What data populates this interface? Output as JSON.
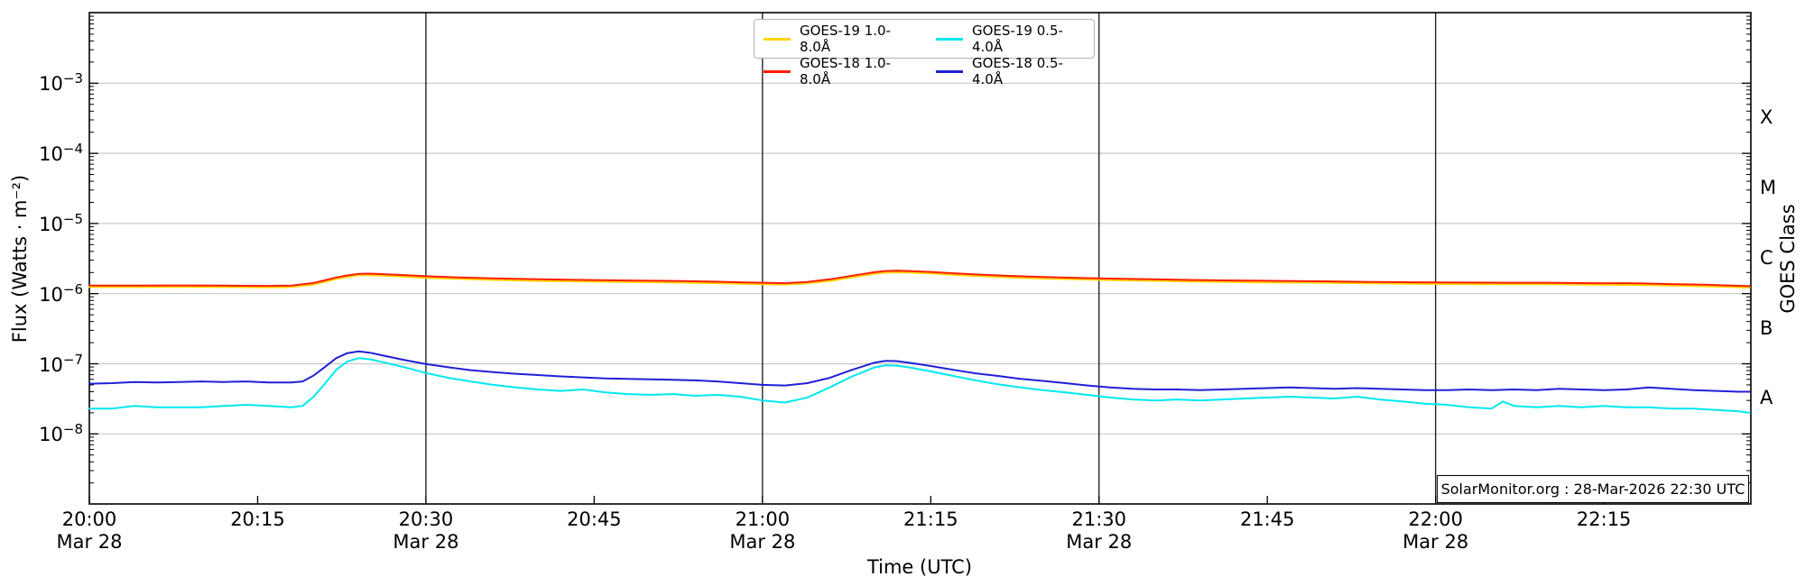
{
  "watermark": {
    "text": "SolarMonitor.org : 28-Mar-2026 22:30 UTC"
  },
  "chart_data": {
    "type": "line",
    "title": "",
    "xlabel": "Time (UTC)",
    "ylabel": "Flux (Watts · m⁻²)",
    "y2label": "GOES Class",
    "x_range_minutes": [
      0,
      148.1
    ],
    "x_start_label": "20:00",
    "y_range": [
      1e-09,
      0.01
    ],
    "grid": "horizontal-decades",
    "legend_position": "top-center",
    "x_ticks": [
      {
        "minute": 0,
        "label": "20:00",
        "date": "Mar 28"
      },
      {
        "minute": 15,
        "label": "20:15"
      },
      {
        "minute": 30,
        "label": "20:30",
        "date": "Mar 28"
      },
      {
        "minute": 45,
        "label": "20:45"
      },
      {
        "minute": 60,
        "label": "21:00",
        "date": "Mar 28"
      },
      {
        "minute": 75,
        "label": "21:15"
      },
      {
        "minute": 90,
        "label": "21:30",
        "date": "Mar 28"
      },
      {
        "minute": 105,
        "label": "21:45"
      },
      {
        "minute": 120,
        "label": "22:00",
        "date": "Mar 28"
      },
      {
        "minute": 135,
        "label": "22:15"
      }
    ],
    "date_line_minutes": [
      30,
      60,
      90,
      120
    ],
    "y_ticks_exponents": [
      -3,
      -4,
      -5,
      -6,
      -7,
      -8
    ],
    "goes_class_labels": [
      {
        "label": "X",
        "log_center": -3.5
      },
      {
        "label": "M",
        "log_center": -4.5
      },
      {
        "label": "C",
        "log_center": -5.5
      },
      {
        "label": "B",
        "log_center": -6.5
      },
      {
        "label": "A",
        "log_center": -7.5
      }
    ],
    "colors": {
      "grid": "#c8c8c8",
      "date_line": "#000000",
      "spine": "#000000"
    },
    "series": [
      {
        "name": "GOES-19 1.0-8.0Å",
        "color": "#ffd400",
        "scale": 1e-06,
        "points": [
          [
            0,
            1.24
          ],
          [
            4,
            1.24
          ],
          [
            8,
            1.25
          ],
          [
            12,
            1.24
          ],
          [
            16,
            1.23
          ],
          [
            18,
            1.24
          ],
          [
            20,
            1.35
          ],
          [
            21,
            1.47
          ],
          [
            22,
            1.62
          ],
          [
            23,
            1.73
          ],
          [
            24,
            1.83
          ],
          [
            25,
            1.84
          ],
          [
            26,
            1.81
          ],
          [
            28,
            1.75
          ],
          [
            30,
            1.68
          ],
          [
            33,
            1.62
          ],
          [
            36,
            1.57
          ],
          [
            40,
            1.52
          ],
          [
            44,
            1.49
          ],
          [
            48,
            1.46
          ],
          [
            52,
            1.44
          ],
          [
            56,
            1.41
          ],
          [
            58,
            1.38
          ],
          [
            60,
            1.36
          ],
          [
            62,
            1.34
          ],
          [
            64,
            1.4
          ],
          [
            66,
            1.52
          ],
          [
            68,
            1.71
          ],
          [
            70,
            1.92
          ],
          [
            71,
            2.0
          ],
          [
            72,
            2.01
          ],
          [
            73,
            2.0
          ],
          [
            75,
            1.94
          ],
          [
            77,
            1.85
          ],
          [
            79,
            1.79
          ],
          [
            82,
            1.7
          ],
          [
            85,
            1.64
          ],
          [
            88,
            1.6
          ],
          [
            91,
            1.56
          ],
          [
            94,
            1.53
          ],
          [
            98,
            1.49
          ],
          [
            102,
            1.46
          ],
          [
            106,
            1.44
          ],
          [
            110,
            1.43
          ],
          [
            114,
            1.4
          ],
          [
            118,
            1.38
          ],
          [
            122,
            1.37
          ],
          [
            126,
            1.36
          ],
          [
            130,
            1.36
          ],
          [
            134,
            1.34
          ],
          [
            138,
            1.33
          ],
          [
            141,
            1.3
          ],
          [
            144,
            1.27
          ],
          [
            146,
            1.25
          ],
          [
            148,
            1.22
          ]
        ]
      },
      {
        "name": "GOES-18 1.0-8.0Å",
        "color": "#ff1e00",
        "scale": 1e-06,
        "points": [
          [
            0,
            1.3
          ],
          [
            4,
            1.3
          ],
          [
            8,
            1.31
          ],
          [
            12,
            1.3
          ],
          [
            16,
            1.29
          ],
          [
            18,
            1.3
          ],
          [
            20,
            1.42
          ],
          [
            21,
            1.55
          ],
          [
            22,
            1.7
          ],
          [
            23,
            1.82
          ],
          [
            24,
            1.92
          ],
          [
            25,
            1.93
          ],
          [
            26,
            1.9
          ],
          [
            28,
            1.84
          ],
          [
            30,
            1.77
          ],
          [
            33,
            1.7
          ],
          [
            36,
            1.65
          ],
          [
            40,
            1.6
          ],
          [
            44,
            1.57
          ],
          [
            48,
            1.54
          ],
          [
            52,
            1.52
          ],
          [
            56,
            1.48
          ],
          [
            58,
            1.45
          ],
          [
            60,
            1.43
          ],
          [
            62,
            1.41
          ],
          [
            64,
            1.47
          ],
          [
            66,
            1.6
          ],
          [
            68,
            1.8
          ],
          [
            70,
            2.02
          ],
          [
            71,
            2.1
          ],
          [
            72,
            2.12
          ],
          [
            73,
            2.1
          ],
          [
            75,
            2.04
          ],
          [
            77,
            1.95
          ],
          [
            79,
            1.88
          ],
          [
            82,
            1.79
          ],
          [
            85,
            1.73
          ],
          [
            88,
            1.68
          ],
          [
            91,
            1.64
          ],
          [
            94,
            1.61
          ],
          [
            98,
            1.57
          ],
          [
            102,
            1.54
          ],
          [
            106,
            1.52
          ],
          [
            110,
            1.5
          ],
          [
            114,
            1.47
          ],
          [
            118,
            1.45
          ],
          [
            122,
            1.44
          ],
          [
            126,
            1.43
          ],
          [
            130,
            1.43
          ],
          [
            134,
            1.41
          ],
          [
            138,
            1.4
          ],
          [
            141,
            1.37
          ],
          [
            144,
            1.34
          ],
          [
            146,
            1.31
          ],
          [
            148,
            1.28
          ]
        ]
      },
      {
        "name": "GOES-19 0.5-4.0Å",
        "color": "#00e8f0",
        "scale": 1e-08,
        "points": [
          [
            0,
            2.3
          ],
          [
            2,
            2.3
          ],
          [
            4,
            2.5
          ],
          [
            6,
            2.4
          ],
          [
            8,
            2.4
          ],
          [
            10,
            2.4
          ],
          [
            12,
            2.5
          ],
          [
            14,
            2.6
          ],
          [
            16,
            2.5
          ],
          [
            18,
            2.4
          ],
          [
            19,
            2.5
          ],
          [
            20,
            3.4
          ],
          [
            21,
            5.2
          ],
          [
            22,
            8.2
          ],
          [
            23,
            10.8
          ],
          [
            24,
            12.0
          ],
          [
            25,
            11.6
          ],
          [
            26,
            10.7
          ],
          [
            27,
            9.8
          ],
          [
            28,
            9.0
          ],
          [
            30,
            7.4
          ],
          [
            32,
            6.3
          ],
          [
            34,
            5.6
          ],
          [
            36,
            5.0
          ],
          [
            38,
            4.6
          ],
          [
            40,
            4.3
          ],
          [
            42,
            4.1
          ],
          [
            44,
            4.3
          ],
          [
            46,
            3.9
          ],
          [
            48,
            3.7
          ],
          [
            50,
            3.6
          ],
          [
            52,
            3.7
          ],
          [
            54,
            3.5
          ],
          [
            56,
            3.6
          ],
          [
            58,
            3.4
          ],
          [
            60,
            3.0
          ],
          [
            62,
            2.8
          ],
          [
            64,
            3.3
          ],
          [
            66,
            4.6
          ],
          [
            68,
            6.6
          ],
          [
            70,
            8.9
          ],
          [
            71,
            9.5
          ],
          [
            72,
            9.4
          ],
          [
            73,
            8.9
          ],
          [
            75,
            7.8
          ],
          [
            77,
            6.7
          ],
          [
            79,
            5.8
          ],
          [
            81,
            5.1
          ],
          [
            83,
            4.6
          ],
          [
            85,
            4.2
          ],
          [
            87,
            3.9
          ],
          [
            89,
            3.6
          ],
          [
            91,
            3.3
          ],
          [
            93,
            3.1
          ],
          [
            95,
            3.0
          ],
          [
            97,
            3.1
          ],
          [
            99,
            3.0
          ],
          [
            101,
            3.1
          ],
          [
            103,
            3.2
          ],
          [
            105,
            3.3
          ],
          [
            107,
            3.4
          ],
          [
            109,
            3.3
          ],
          [
            111,
            3.2
          ],
          [
            113,
            3.4
          ],
          [
            115,
            3.1
          ],
          [
            117,
            2.9
          ],
          [
            119,
            2.7
          ],
          [
            121,
            2.6
          ],
          [
            123,
            2.4
          ],
          [
            125,
            2.3
          ],
          [
            126,
            2.9
          ],
          [
            127,
            2.5
          ],
          [
            129,
            2.4
          ],
          [
            131,
            2.5
          ],
          [
            133,
            2.4
          ],
          [
            135,
            2.5
          ],
          [
            137,
            2.4
          ],
          [
            139,
            2.4
          ],
          [
            141,
            2.3
          ],
          [
            143,
            2.3
          ],
          [
            145,
            2.2
          ],
          [
            147,
            2.1
          ],
          [
            148,
            2.0
          ]
        ]
      },
      {
        "name": "GOES-18 0.5-4.0Å",
        "color": "#2020d8",
        "scale": 1e-08,
        "points": [
          [
            0,
            5.2
          ],
          [
            2,
            5.3
          ],
          [
            4,
            5.5
          ],
          [
            6,
            5.4
          ],
          [
            8,
            5.5
          ],
          [
            10,
            5.6
          ],
          [
            12,
            5.5
          ],
          [
            14,
            5.6
          ],
          [
            16,
            5.4
          ],
          [
            18,
            5.4
          ],
          [
            19,
            5.6
          ],
          [
            20,
            6.8
          ],
          [
            21,
            9.0
          ],
          [
            22,
            12.0
          ],
          [
            23,
            14.2
          ],
          [
            24,
            15.0
          ],
          [
            25,
            14.4
          ],
          [
            26,
            13.3
          ],
          [
            27,
            12.3
          ],
          [
            28,
            11.4
          ],
          [
            30,
            9.9
          ],
          [
            32,
            8.9
          ],
          [
            34,
            8.1
          ],
          [
            36,
            7.6
          ],
          [
            38,
            7.2
          ],
          [
            40,
            6.9
          ],
          [
            42,
            6.6
          ],
          [
            44,
            6.4
          ],
          [
            46,
            6.2
          ],
          [
            48,
            6.1
          ],
          [
            50,
            6.0
          ],
          [
            52,
            5.9
          ],
          [
            54,
            5.8
          ],
          [
            56,
            5.6
          ],
          [
            58,
            5.3
          ],
          [
            60,
            5.0
          ],
          [
            62,
            4.9
          ],
          [
            64,
            5.3
          ],
          [
            66,
            6.3
          ],
          [
            68,
            8.2
          ],
          [
            70,
            10.4
          ],
          [
            71,
            11.0
          ],
          [
            72,
            10.9
          ],
          [
            73,
            10.4
          ],
          [
            75,
            9.3
          ],
          [
            77,
            8.2
          ],
          [
            79,
            7.3
          ],
          [
            81,
            6.7
          ],
          [
            83,
            6.1
          ],
          [
            85,
            5.7
          ],
          [
            87,
            5.3
          ],
          [
            89,
            4.9
          ],
          [
            91,
            4.6
          ],
          [
            93,
            4.4
          ],
          [
            95,
            4.3
          ],
          [
            97,
            4.3
          ],
          [
            99,
            4.2
          ],
          [
            101,
            4.3
          ],
          [
            103,
            4.4
          ],
          [
            105,
            4.5
          ],
          [
            107,
            4.6
          ],
          [
            109,
            4.5
          ],
          [
            111,
            4.4
          ],
          [
            113,
            4.5
          ],
          [
            115,
            4.4
          ],
          [
            117,
            4.3
          ],
          [
            119,
            4.2
          ],
          [
            121,
            4.2
          ],
          [
            123,
            4.3
          ],
          [
            125,
            4.2
          ],
          [
            127,
            4.3
          ],
          [
            129,
            4.2
          ],
          [
            131,
            4.4
          ],
          [
            133,
            4.3
          ],
          [
            135,
            4.2
          ],
          [
            137,
            4.3
          ],
          [
            139,
            4.6
          ],
          [
            141,
            4.4
          ],
          [
            143,
            4.2
          ],
          [
            145,
            4.1
          ],
          [
            147,
            4.0
          ],
          [
            148,
            4.0
          ]
        ]
      }
    ]
  }
}
